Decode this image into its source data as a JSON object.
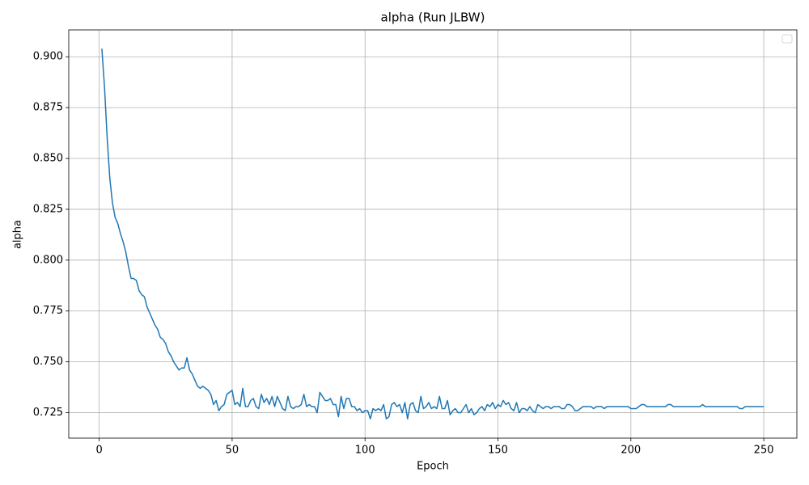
{
  "chart_data": {
    "type": "line",
    "title": "alpha (Run JLBW)",
    "x_label": "Epoch",
    "y_label": "alpha",
    "x": [
      1,
      2,
      3,
      4,
      5,
      6,
      7,
      8,
      9,
      10,
      11,
      12,
      13,
      14,
      15,
      16,
      17,
      18,
      19,
      20,
      21,
      22,
      23,
      24,
      25,
      26,
      27,
      28,
      29,
      30,
      31,
      32,
      33,
      34,
      35,
      36,
      37,
      38,
      39,
      40,
      41,
      42,
      43,
      44,
      45,
      46,
      47,
      48,
      49,
      50,
      51,
      52,
      53,
      54,
      55,
      56,
      57,
      58,
      59,
      60,
      61,
      62,
      63,
      64,
      65,
      66,
      67,
      68,
      69,
      70,
      71,
      72,
      73,
      74,
      75,
      76,
      77,
      78,
      79,
      80,
      81,
      82,
      83,
      84,
      85,
      86,
      87,
      88,
      89,
      90,
      91,
      92,
      93,
      94,
      95,
      96,
      97,
      98,
      99,
      100,
      101,
      102,
      103,
      104,
      105,
      106,
      107,
      108,
      109,
      110,
      111,
      112,
      113,
      114,
      115,
      116,
      117,
      118,
      119,
      120,
      121,
      122,
      123,
      124,
      125,
      126,
      127,
      128,
      129,
      130,
      131,
      132,
      133,
      134,
      135,
      136,
      137,
      138,
      139,
      140,
      141,
      142,
      143,
      144,
      145,
      146,
      147,
      148,
      149,
      150,
      151,
      152,
      153,
      154,
      155,
      156,
      157,
      158,
      159,
      160,
      161,
      162,
      163,
      164,
      165,
      166,
      167,
      168,
      169,
      170,
      171,
      172,
      173,
      174,
      175,
      176,
      177,
      178,
      179,
      180,
      181,
      182,
      183,
      184,
      185,
      186,
      187,
      188,
      189,
      190,
      191,
      192,
      193,
      194,
      195,
      196,
      197,
      198,
      199,
      200,
      201,
      202,
      203,
      204,
      205,
      206,
      207,
      208,
      209,
      210,
      211,
      212,
      213,
      214,
      215,
      216,
      217,
      218,
      219,
      220,
      221,
      222,
      223,
      224,
      225,
      226,
      227,
      228,
      229,
      230,
      231,
      232,
      233,
      234,
      235,
      236,
      237,
      238,
      239,
      240,
      241,
      242,
      243,
      244,
      245,
      246,
      247,
      248,
      249,
      250
    ],
    "series": [
      {
        "color": "#1f77b4",
        "values": [
          0.904,
          0.885,
          0.86,
          0.84,
          0.828,
          0.821,
          0.818,
          0.813,
          0.809,
          0.804,
          0.797,
          0.791,
          0.791,
          0.79,
          0.785,
          0.783,
          0.782,
          0.777,
          0.774,
          0.771,
          0.768,
          0.766,
          0.762,
          0.761,
          0.759,
          0.755,
          0.753,
          0.75,
          0.748,
          0.746,
          0.747,
          0.747,
          0.752,
          0.746,
          0.744,
          0.741,
          0.738,
          0.737,
          0.738,
          0.737,
          0.736,
          0.734,
          0.729,
          0.731,
          0.726,
          0.728,
          0.729,
          0.734,
          0.735,
          0.736,
          0.729,
          0.73,
          0.728,
          0.737,
          0.728,
          0.728,
          0.731,
          0.732,
          0.728,
          0.727,
          0.734,
          0.73,
          0.732,
          0.729,
          0.733,
          0.728,
          0.733,
          0.73,
          0.727,
          0.726,
          0.733,
          0.728,
          0.727,
          0.728,
          0.728,
          0.729,
          0.734,
          0.728,
          0.729,
          0.728,
          0.728,
          0.725,
          0.735,
          0.733,
          0.731,
          0.731,
          0.732,
          0.729,
          0.729,
          0.723,
          0.733,
          0.727,
          0.732,
          0.732,
          0.728,
          0.728,
          0.726,
          0.727,
          0.725,
          0.726,
          0.726,
          0.722,
          0.727,
          0.726,
          0.727,
          0.726,
          0.729,
          0.722,
          0.723,
          0.729,
          0.73,
          0.728,
          0.729,
          0.725,
          0.73,
          0.722,
          0.729,
          0.73,
          0.726,
          0.725,
          0.733,
          0.727,
          0.728,
          0.73,
          0.727,
          0.728,
          0.727,
          0.733,
          0.727,
          0.727,
          0.731,
          0.724,
          0.726,
          0.727,
          0.725,
          0.725,
          0.727,
          0.729,
          0.725,
          0.727,
          0.724,
          0.725,
          0.727,
          0.728,
          0.726,
          0.729,
          0.728,
          0.73,
          0.727,
          0.729,
          0.728,
          0.731,
          0.729,
          0.73,
          0.727,
          0.726,
          0.73,
          0.725,
          0.727,
          0.727,
          0.726,
          0.728,
          0.726,
          0.725,
          0.729,
          0.728,
          0.727,
          0.728,
          0.728,
          0.727,
          0.728,
          0.728,
          0.728,
          0.727,
          0.727,
          0.729,
          0.729,
          0.728,
          0.726,
          0.726,
          0.727,
          0.728,
          0.728,
          0.728,
          0.728,
          0.727,
          0.728,
          0.728,
          0.728,
          0.727,
          0.728,
          0.728,
          0.728,
          0.728,
          0.728,
          0.728,
          0.728,
          0.728,
          0.728,
          0.727,
          0.727,
          0.727,
          0.728,
          0.729,
          0.729,
          0.728,
          0.728,
          0.728,
          0.728,
          0.728,
          0.728,
          0.728,
          0.728,
          0.729,
          0.729,
          0.728,
          0.728,
          0.728,
          0.728,
          0.728,
          0.728,
          0.728,
          0.728,
          0.728,
          0.728,
          0.728,
          0.729,
          0.728,
          0.728,
          0.728,
          0.728,
          0.728,
          0.728,
          0.728,
          0.728,
          0.728,
          0.728,
          0.728,
          0.728,
          0.728,
          0.727,
          0.727,
          0.728,
          0.728,
          0.728,
          0.728,
          0.728,
          0.728,
          0.728,
          0.728
        ]
      }
    ],
    "xlim": [
      -11.45,
      262.45
    ],
    "xticks": [
      0,
      50,
      100,
      150,
      200,
      250
    ],
    "ylim": [
      0.7125,
      0.9132
    ],
    "yticks": [
      0.725,
      {
        "value": 0.75,
        "label": "0.750"
      },
      0.775,
      {
        "value": 0.8,
        "label": "0.800"
      },
      0.825,
      {
        "value": 0.85,
        "label": "0.850"
      },
      0.875,
      {
        "value": 0.9,
        "label": "0.900"
      }
    ],
    "grid": true,
    "legend": "upper right"
  }
}
